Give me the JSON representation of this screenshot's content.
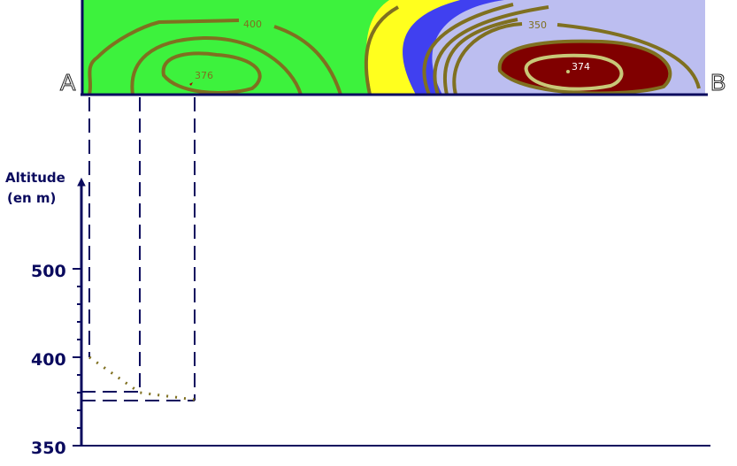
{
  "map": {
    "point_a": "A",
    "point_b": "B",
    "contour_labels": [
      "400",
      "376",
      "350",
      "374"
    ],
    "colors": {
      "green": "#3df23d",
      "yellow": "#ffff1e",
      "blue": "#4040f0",
      "lavender": "#bcbef0",
      "darkred": "#800000",
      "contour": "#7f7020"
    }
  },
  "profile": {
    "axis_title_line1": "Altitude",
    "axis_title_line2": "(en m)",
    "tick_labels": [
      "500",
      "400",
      "350"
    ],
    "points": [
      {
        "position": "A",
        "altitude": 400
      },
      {
        "position": "1",
        "altitude": 380
      },
      {
        "position": "2",
        "altitude": 376
      }
    ],
    "axis_color": "#0a0a5e"
  }
}
